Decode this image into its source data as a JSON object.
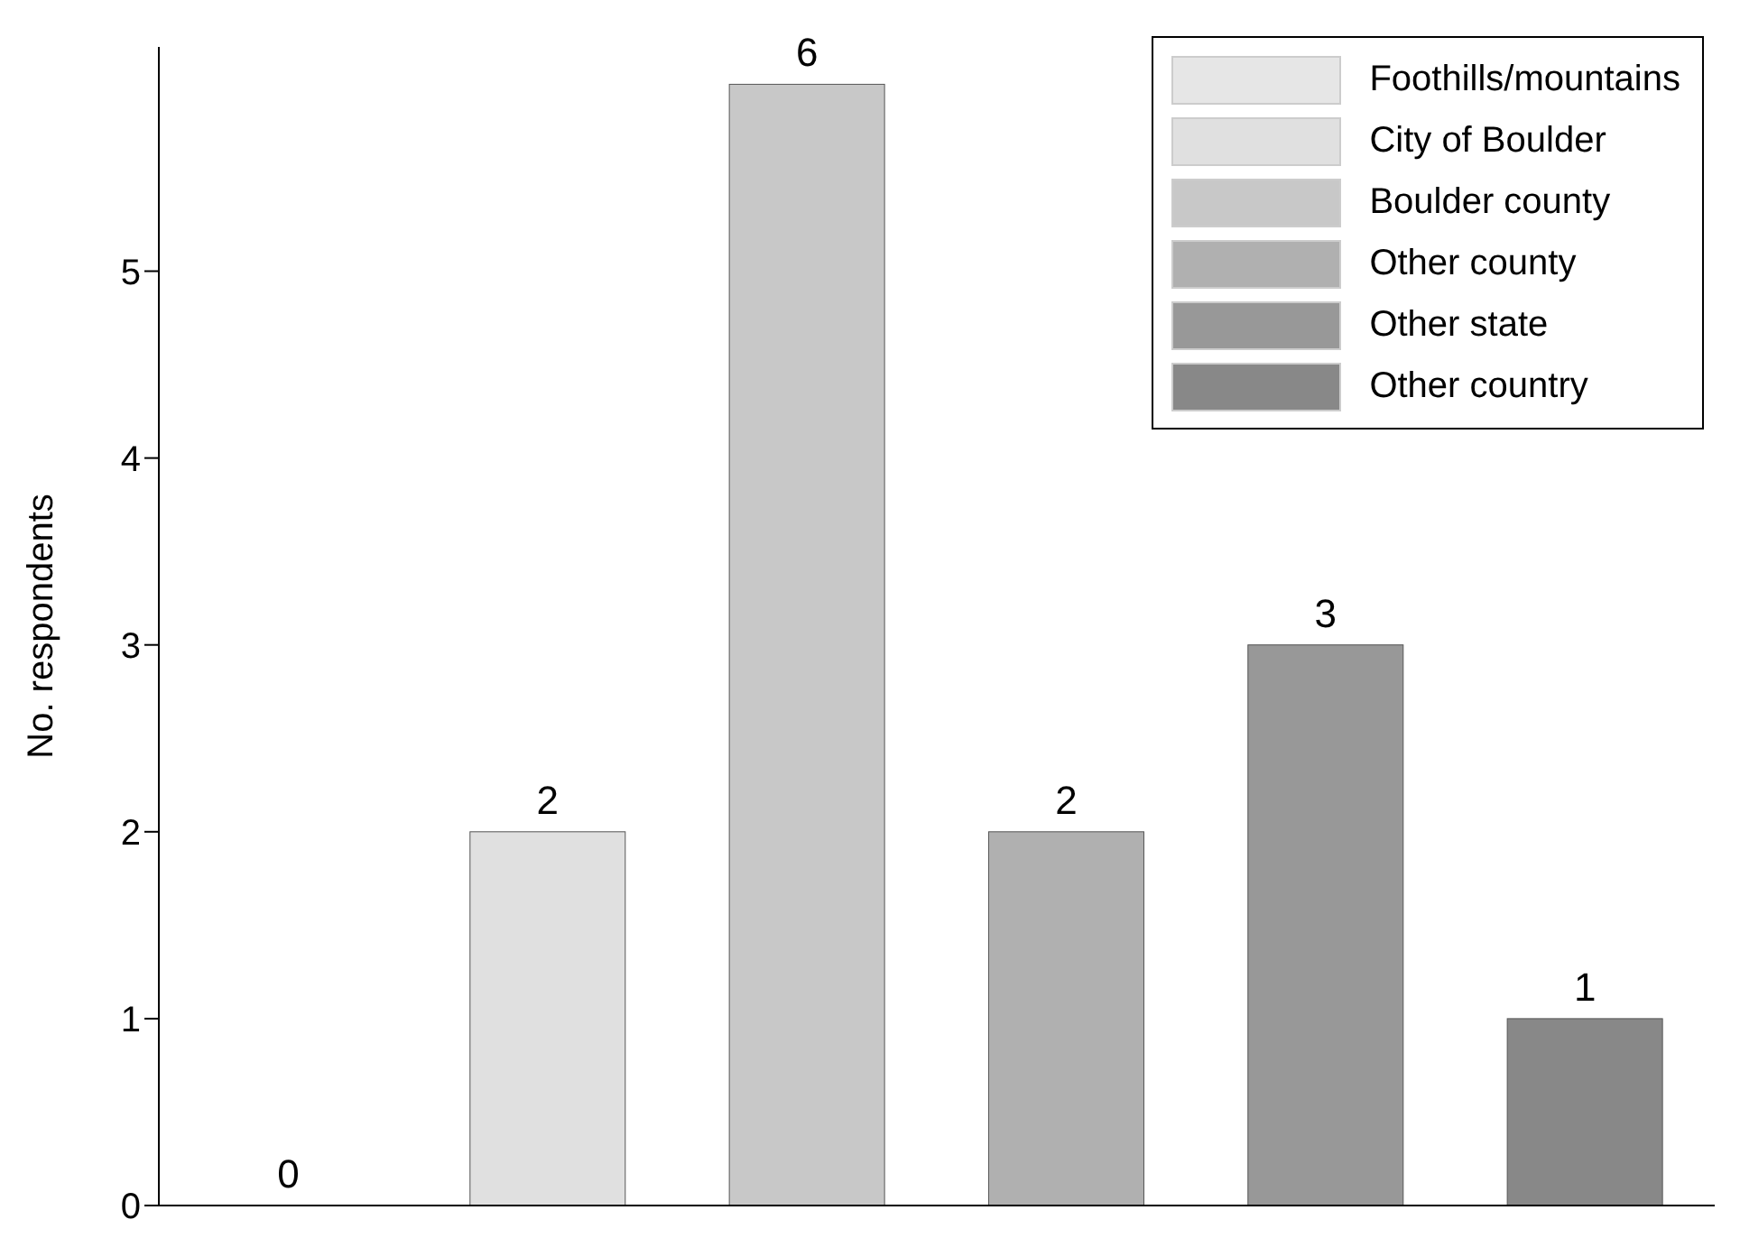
{
  "chart_data": {
    "type": "bar",
    "ylabel": "No. respondents",
    "categories": [
      null,
      null,
      null,
      null,
      null,
      null
    ],
    "series": [
      {
        "name": "Foothills/mountains",
        "color": "#e6e6e6",
        "values": [
          0,
          null,
          null,
          null,
          null,
          null
        ]
      },
      {
        "name": "City of Boulder",
        "color": "#e0e0e0",
        "values": [
          null,
          2,
          null,
          null,
          null,
          null
        ]
      },
      {
        "name": "Boulder county",
        "color": "#c8c8c8",
        "values": [
          null,
          null,
          6,
          null,
          null,
          null
        ]
      },
      {
        "name": "Other county",
        "color": "#b0b0b0",
        "values": [
          null,
          null,
          null,
          2,
          null,
          null
        ]
      },
      {
        "name": "Other state",
        "color": "#989898",
        "values": [
          null,
          null,
          null,
          null,
          3,
          null
        ]
      },
      {
        "name": "Other country",
        "color": "#888888",
        "values": [
          null,
          null,
          null,
          null,
          null,
          1
        ]
      }
    ],
    "ylim": [
      0,
      6.2
    ],
    "yticks": [
      0,
      1,
      2,
      3,
      4,
      5
    ],
    "data_labels": true,
    "legend": "top right",
    "grid": false
  }
}
